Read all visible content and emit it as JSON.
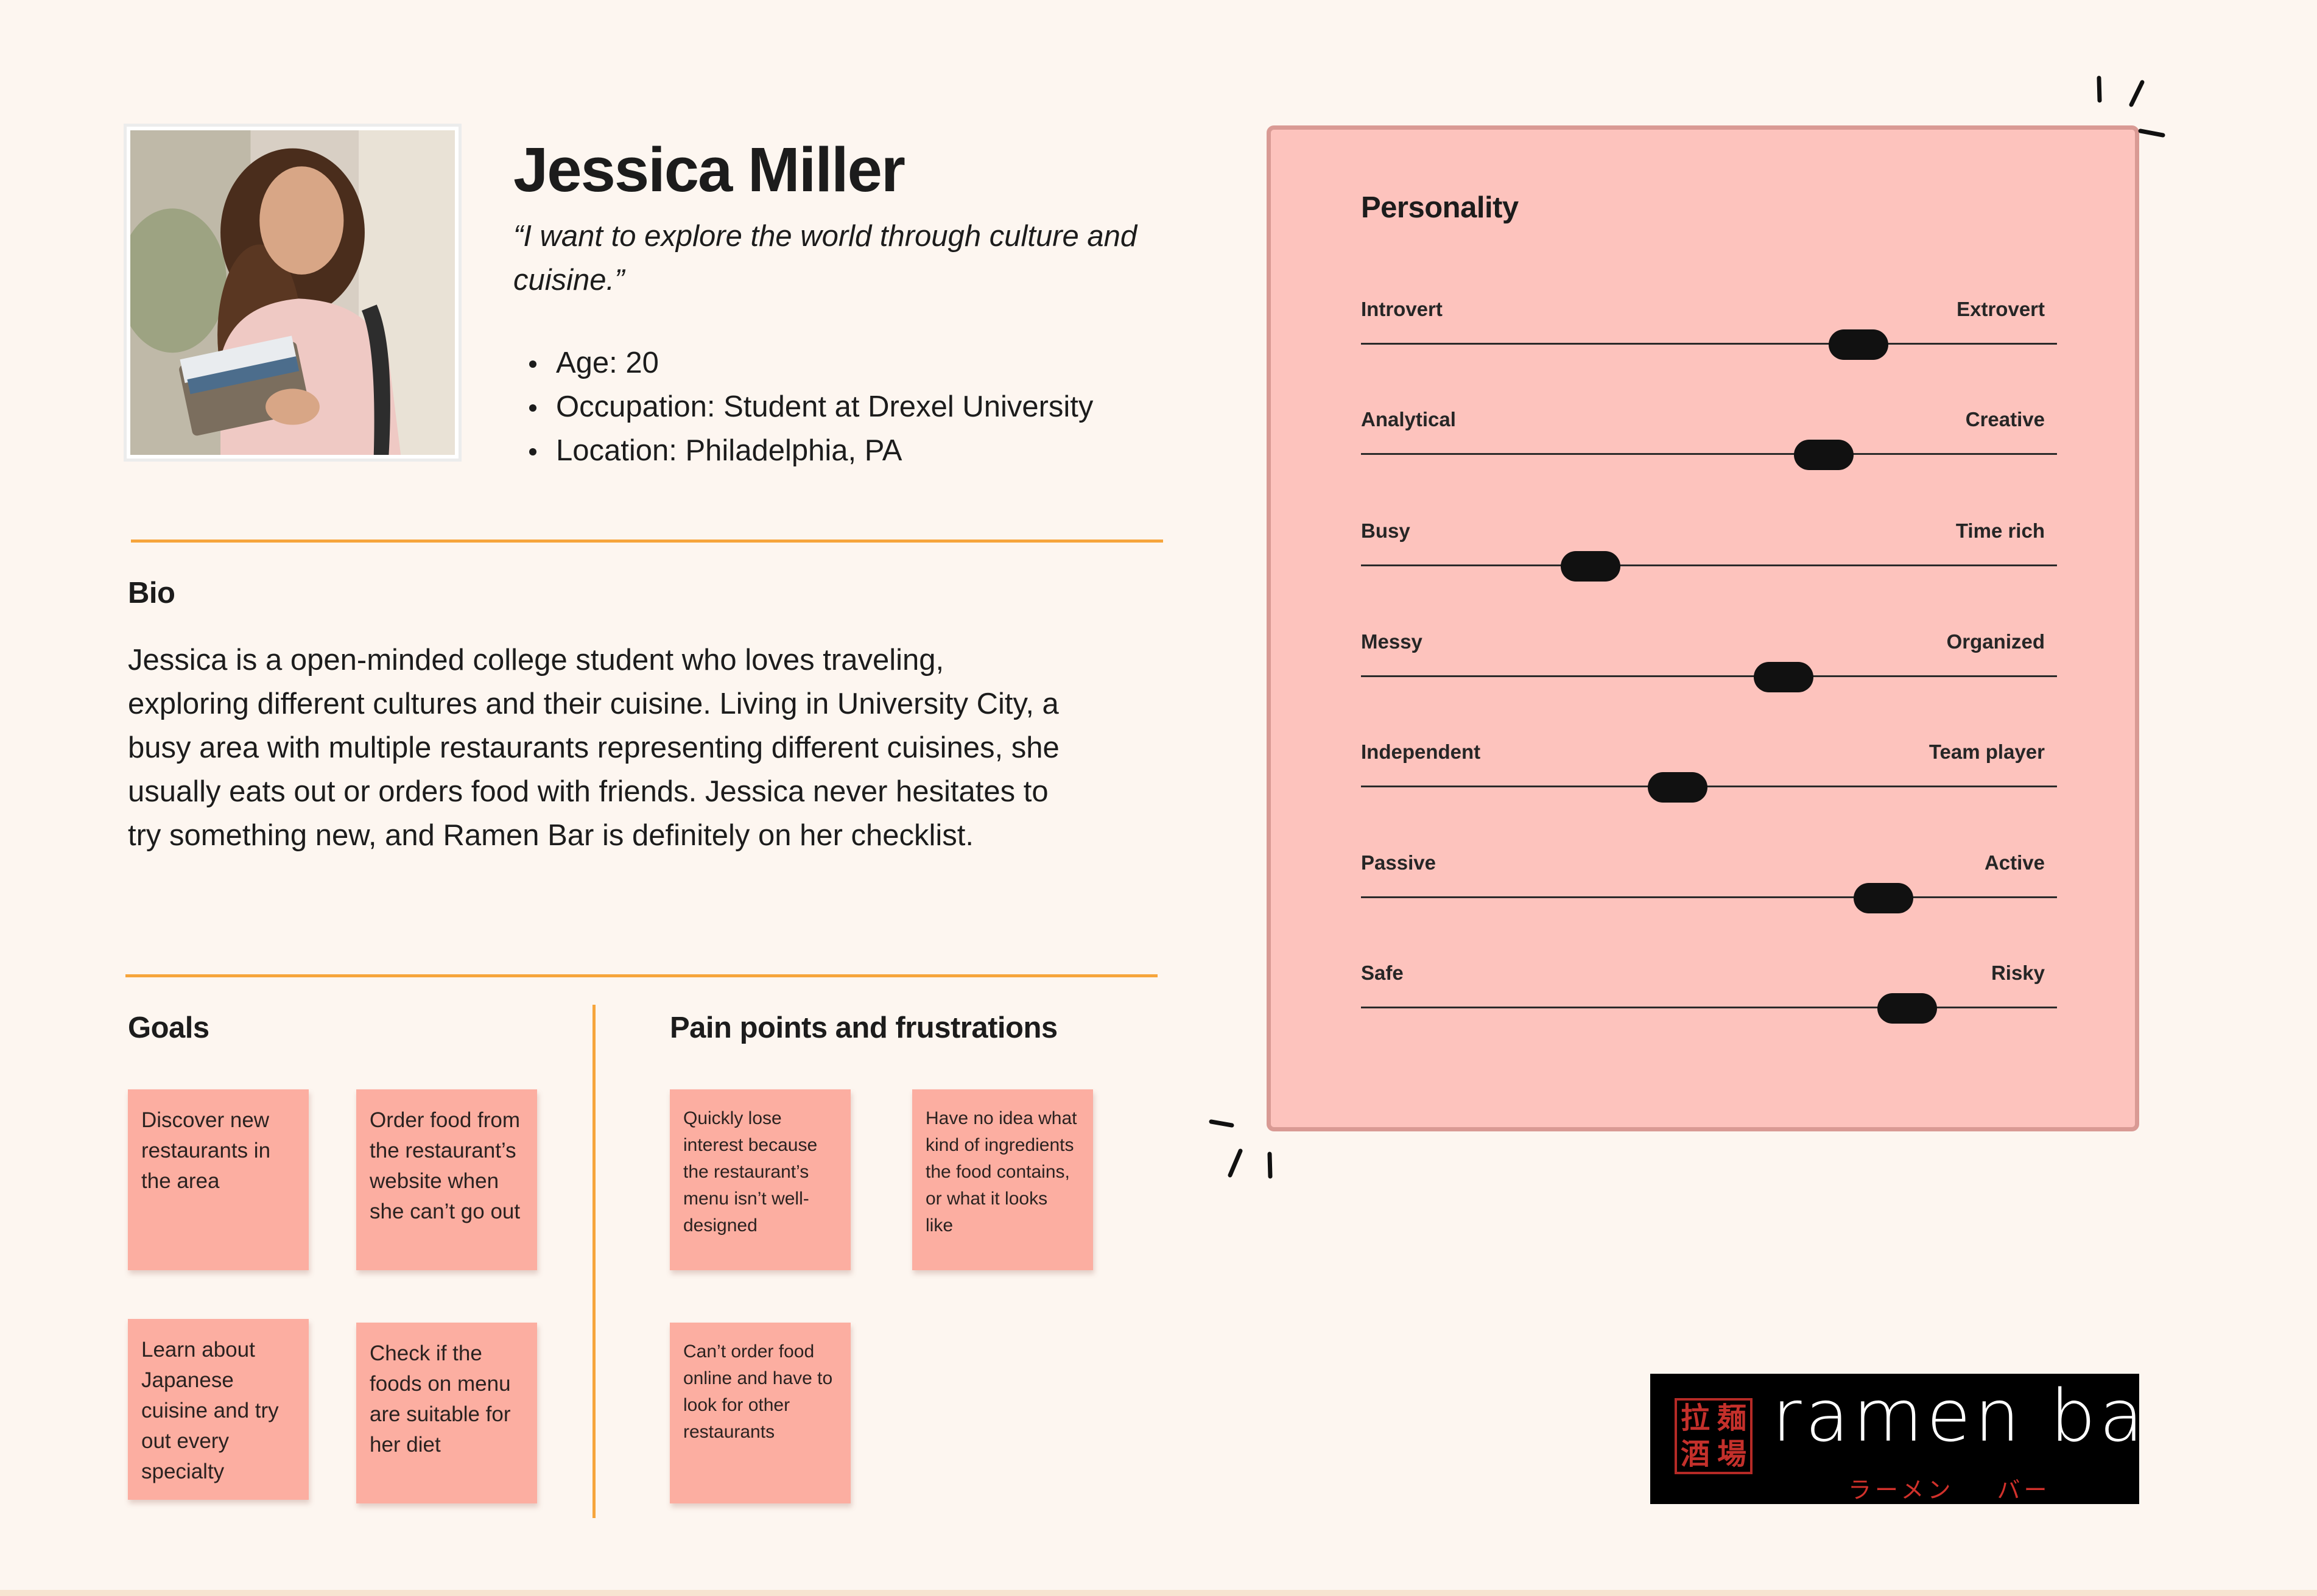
{
  "persona": {
    "name": "Jessica Miller",
    "quote": "“I want to explore the world through culture and cuisine.”",
    "facts": [
      "Age: 20",
      "Occupation: Student at Drexel University",
      "Location: Philadelphia, PA"
    ]
  },
  "bio": {
    "title": "Bio",
    "text": "Jessica is a open-minded college student who loves traveling, exploring different cultures and their cuisine. Living in University City, a busy area with multiple restaurants representing different cuisines, she usually eats out or orders food with friends. Jessica never hesitates to try something new, and Ramen Bar is definitely on her checklist."
  },
  "goals": {
    "title": "Goals",
    "items": [
      "Discover new restaurants in the area",
      "Order food from the restaurant’s website when she can’t go out",
      "Learn about Japanese cuisine and try out every specialty",
      "Check if the foods on menu are suitable for her diet"
    ]
  },
  "pain_points": {
    "title": "Pain points and frustrations",
    "items": [
      "Quickly lose interest because the restaurant’s menu isn’t well-designed",
      "Have no idea what kind of ingredients the food contains, or what it looks like",
      "Can’t order food online and have to look for other restaurants"
    ]
  },
  "personality": {
    "title": "Personality",
    "traits": [
      {
        "left": "Introvert",
        "right": "Extrovert",
        "value": 0.715
      },
      {
        "left": "Analytical",
        "right": "Creative",
        "value": 0.665
      },
      {
        "left": "Busy",
        "right": "Time rich",
        "value": 0.33
      },
      {
        "left": "Messy",
        "right": "Organized",
        "value": 0.607
      },
      {
        "left": "Independent",
        "right": "Team player",
        "value": 0.455
      },
      {
        "left": "Passive",
        "right": "Active",
        "value": 0.751
      },
      {
        "left": "Safe",
        "right": "Risky",
        "value": 0.785
      }
    ]
  },
  "logo": {
    "word": "ramen bar",
    "stamp": [
      "拉",
      "麺",
      "酒",
      "場"
    ],
    "kana": [
      "ラーメン",
      "バー"
    ]
  },
  "colors": {
    "background": "#fdf6f0",
    "accent_line": "#f6a53c",
    "sticky": "#fcaea1",
    "panel": "#fdc3bd",
    "panel_border": "#d99a94"
  }
}
